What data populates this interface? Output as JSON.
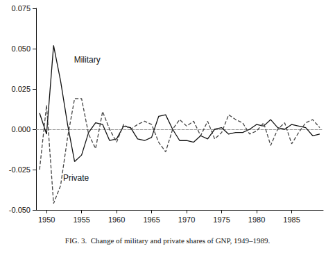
{
  "chart_data": {
    "type": "line",
    "title": "FIG. 3.  Change of military and private shares of GNP, 1949–1989.",
    "x": [
      1949,
      1950,
      1951,
      1952,
      1953,
      1954,
      1955,
      1956,
      1957,
      1958,
      1959,
      1960,
      1961,
      1962,
      1963,
      1964,
      1965,
      1966,
      1967,
      1968,
      1969,
      1970,
      1971,
      1972,
      1973,
      1974,
      1975,
      1976,
      1977,
      1978,
      1979,
      1980,
      1981,
      1982,
      1983,
      1984,
      1985,
      1986,
      1987,
      1988,
      1989
    ],
    "series": [
      {
        "name": "Military",
        "color": "#111111",
        "line_style": "solid",
        "values": [
          0.01,
          -0.003,
          0.052,
          0.03,
          0.003,
          -0.02,
          -0.016,
          -0.002,
          0.004,
          0.003,
          -0.007,
          -0.006,
          0.002,
          0.001,
          -0.006,
          -0.007,
          -0.005,
          0.008,
          0.009,
          0.0,
          -0.007,
          -0.007,
          -0.008,
          -0.004,
          -0.006,
          0.0,
          0.001,
          -0.003,
          -0.002,
          -0.002,
          0.0,
          0.003,
          0.002,
          0.006,
          0.001,
          0.0,
          0.003,
          0.002,
          0.001,
          -0.004,
          -0.003
        ]
      },
      {
        "name": "Private",
        "color": "#444444",
        "line_style": "dashed",
        "values": [
          -0.025,
          0.015,
          -0.046,
          -0.035,
          -0.005,
          0.019,
          0.019,
          -0.003,
          -0.012,
          0.011,
          0.0,
          -0.008,
          0.003,
          0.0,
          0.003,
          0.005,
          0.003,
          -0.008,
          -0.014,
          0.0,
          0.006,
          0.002,
          0.005,
          -0.004,
          0.005,
          -0.006,
          -0.002,
          0.009,
          0.006,
          0.004,
          -0.003,
          -0.001,
          0.004,
          -0.01,
          0.0,
          0.004,
          -0.009,
          -0.002,
          0.004,
          0.006,
          0.001
        ]
      }
    ],
    "annotations": [
      {
        "text": "Military",
        "x": 1955.8,
        "y": 0.043
      },
      {
        "text": "Private",
        "x": 1954.2,
        "y": -0.03
      }
    ],
    "xlim": [
      1948.5,
      1989.5
    ],
    "xticks": [
      1950,
      1955,
      1960,
      1965,
      1970,
      1975,
      1980,
      1985
    ],
    "ylim": [
      -0.05,
      0.075
    ],
    "yticks": [
      {
        "value": -0.05,
        "label": "-0.050"
      },
      -0.025,
      {
        "value": 0,
        "label": "0.000"
      },
      0.025,
      {
        "value": 0.05,
        "label": "0.050"
      },
      0.075
    ],
    "grid": false
  }
}
